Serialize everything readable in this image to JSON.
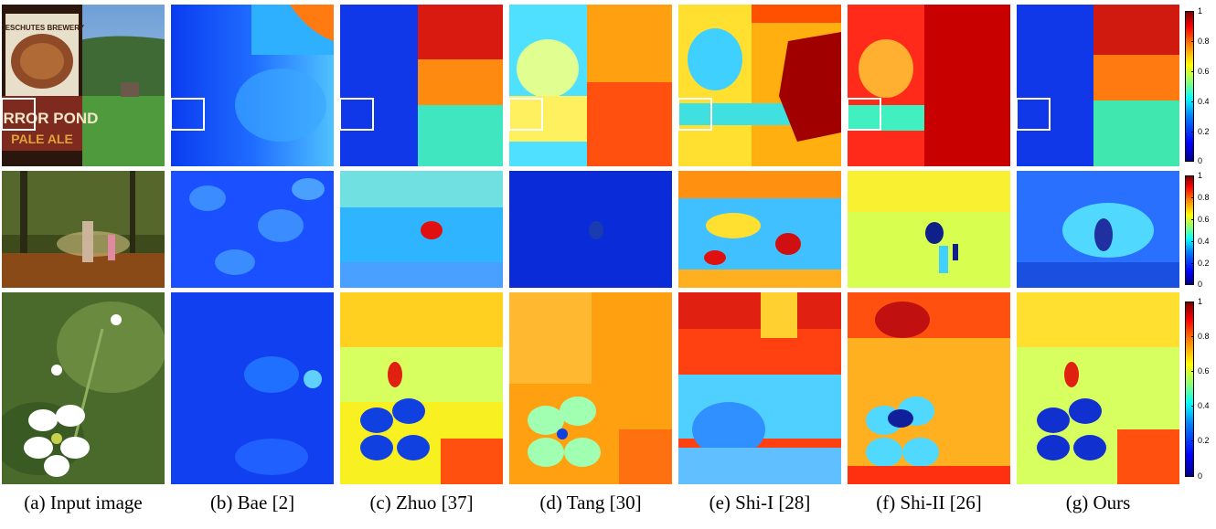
{
  "captions": [
    "(a) Input image",
    "(b) Bae [2]",
    "(c) Zhuo [37]",
    "(d) Tang [30]",
    "(e) Shi-I [28]",
    "(f) Shi-II [26]",
    "(g) Ours"
  ],
  "photo_text": {
    "brewery": "DESCHUTES BREWERY",
    "brand_line1": "MIRROR POND",
    "brand_line2": "PALE ALE"
  },
  "colorbar_ticks": [
    "1",
    "0.8",
    "0.6",
    "0.4",
    "0.2",
    "0"
  ],
  "colorbar_ticks_row2": [
    "1",
    "0.8",
    "0.6",
    "0.4",
    "0.2",
    "0"
  ],
  "colorbar_ticks_row3": [
    "1",
    "0.8",
    "0.6",
    "0.4",
    "0.2",
    "0"
  ],
  "colormap": {
    "low": "#00008f",
    "mid": "#80ff80",
    "high": "#800000"
  }
}
